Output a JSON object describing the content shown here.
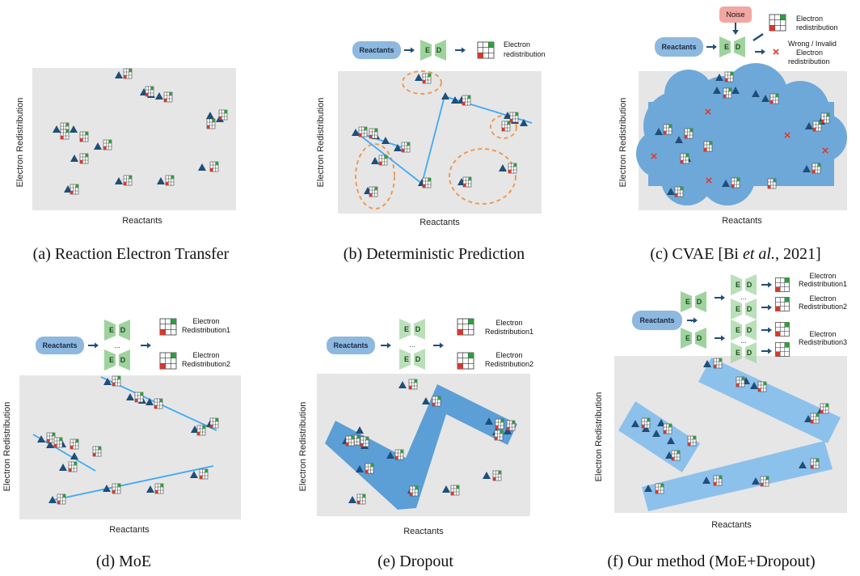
{
  "captions": {
    "a": "(a) Reaction Electron Transfer",
    "b": "(b) Deterministic Prediction",
    "c": "(c) CVAE [Bi et al., 2021]",
    "c_pre": "(c) CVAE [Bi ",
    "c_ital": "et al.",
    "c_post": ", 2021]",
    "d": "(d) MoE",
    "e": "(e) Dropout",
    "f": "(f) Our method (MoE+Dropout)"
  },
  "axes": {
    "x": "Reactants",
    "y": "Electron Redistribution"
  },
  "flow": {
    "reactants": "Reactants",
    "encoder": "E",
    "decoder": "D",
    "dots": "...",
    "noise": "Noise",
    "electron": "Electron",
    "redistribution": "redistribution",
    "wrong_l1": "Wrong / Invalid",
    "wrong_l2": "Electron",
    "wrong_l3": "redistribution",
    "redistribution1": "Redistribution1",
    "redistribution2": "Redistribution2",
    "redistribution3": "Redistribution3"
  },
  "cross_symbol": "×",
  "colors": {
    "panel_bg": "#e6e6e6",
    "triangle": "#1f4e79",
    "line": "#3fa9f5",
    "ellipse": "#ee9a55",
    "cloud": "#6ea8d9",
    "band": "#5b9fd6",
    "pill": "#8db8df",
    "module": "#9ed39e",
    "cross": "#e03b2e",
    "noise": "#f2a7a2"
  },
  "icons": [
    "triangle-marker",
    "grid-marker",
    "arrow-icon",
    "cross-icon",
    "encoder-decoder-icon"
  ]
}
